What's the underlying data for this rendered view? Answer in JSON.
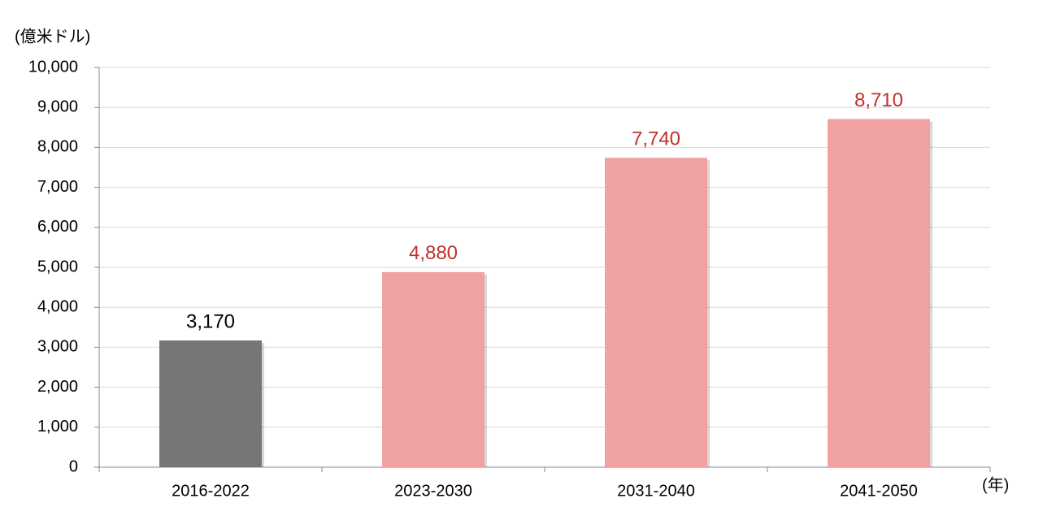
{
  "chart_data": {
    "type": "bar",
    "y_axis_label": "(億米ドル)",
    "x_axis_label": "(年)",
    "categories": [
      "2016-2022",
      "2023-2030",
      "2031-2040",
      "2041-2050"
    ],
    "values": [
      3170,
      4880,
      7740,
      8710
    ],
    "value_labels": [
      "3,170",
      "4,880",
      "7,740",
      "8,710"
    ],
    "colors": [
      "#767676",
      "#f0a2a2",
      "#f0a2a2",
      "#f0a2a2"
    ],
    "value_label_colors": [
      "#000000",
      "#c0302a",
      "#c0302a",
      "#c0302a"
    ],
    "ylim": [
      0,
      10000
    ],
    "yticks": [
      0,
      {
        "value": 1000,
        "label": "1,000"
      },
      {
        "value": 2000,
        "label": "2,000"
      },
      {
        "value": 3000,
        "label": "3,000"
      },
      {
        "value": 4000,
        "label": "4,000"
      },
      {
        "value": 5000,
        "label": "5,000"
      },
      {
        "value": 6000,
        "label": "6,000"
      },
      {
        "value": 7000,
        "label": "7,000"
      },
      {
        "value": 8000,
        "label": "8,000"
      },
      {
        "value": 9000,
        "label": "9,000"
      },
      {
        "value": 10000,
        "label": "10,000"
      }
    ],
    "grid": true
  }
}
